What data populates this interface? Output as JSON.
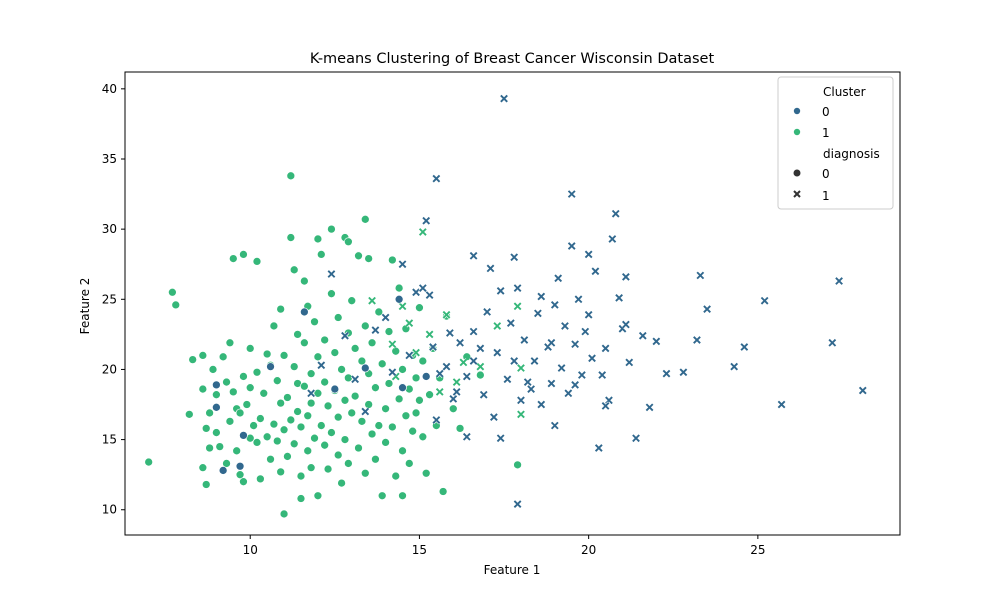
{
  "chart_data": {
    "type": "scatter",
    "title": "K-means Clustering of Breast Cancer Wisconsin Dataset",
    "xlabel": "Feature 1",
    "ylabel": "Feature 2",
    "xlim": [
      6.3,
      29.2
    ],
    "ylim": [
      8.2,
      41.2
    ],
    "xticks": [
      10,
      15,
      20,
      25
    ],
    "yticks": [
      10,
      15,
      20,
      25,
      30,
      35,
      40
    ],
    "grid": false,
    "legend": {
      "placement": "top-right",
      "cluster_title": "Cluster",
      "clusters": [
        "0",
        "1"
      ],
      "diagnosis_title": "diagnosis",
      "diagnoses": [
        "0",
        "1"
      ]
    },
    "colors": {
      "cluster_0": "#31688e",
      "cluster_1": "#35b779",
      "edge": "#ffffff"
    },
    "markers": {
      "diagnosis_0": "circle",
      "diagnosis_1": "x"
    },
    "series": [
      {
        "cluster": "1",
        "diagnosis": "0",
        "points": [
          [
            7.0,
            13.4
          ],
          [
            7.7,
            25.5
          ],
          [
            7.8,
            24.6
          ],
          [
            8.2,
            16.8
          ],
          [
            8.3,
            20.7
          ],
          [
            8.6,
            21.0
          ],
          [
            8.6,
            18.6
          ],
          [
            8.6,
            13.0
          ],
          [
            8.7,
            11.8
          ],
          [
            8.7,
            15.8
          ],
          [
            8.8,
            16.9
          ],
          [
            8.8,
            14.4
          ],
          [
            8.9,
            20.0
          ],
          [
            9.0,
            18.2
          ],
          [
            9.0,
            15.5
          ],
          [
            9.1,
            14.5
          ],
          [
            9.2,
            20.9
          ],
          [
            9.3,
            13.3
          ],
          [
            9.3,
            19.1
          ],
          [
            9.4,
            21.9
          ],
          [
            9.4,
            16.3
          ],
          [
            9.5,
            27.9
          ],
          [
            9.5,
            18.4
          ],
          [
            9.6,
            17.2
          ],
          [
            9.6,
            14.2
          ],
          [
            9.7,
            12.5
          ],
          [
            9.7,
            16.9
          ],
          [
            9.8,
            28.2
          ],
          [
            9.8,
            19.5
          ],
          [
            9.8,
            12.0
          ],
          [
            9.9,
            17.5
          ],
          [
            10.0,
            15.1
          ],
          [
            10.0,
            21.5
          ],
          [
            10.0,
            18.7
          ],
          [
            10.1,
            16.0
          ],
          [
            10.2,
            14.8
          ],
          [
            10.2,
            19.8
          ],
          [
            10.2,
            27.7
          ],
          [
            10.3,
            12.2
          ],
          [
            10.3,
            16.5
          ],
          [
            10.4,
            18.3
          ],
          [
            10.5,
            21.1
          ],
          [
            10.5,
            15.2
          ],
          [
            10.6,
            13.6
          ],
          [
            10.6,
            20.3
          ],
          [
            10.7,
            16.1
          ],
          [
            10.7,
            23.1
          ],
          [
            10.8,
            14.9
          ],
          [
            10.8,
            19.2
          ],
          [
            10.9,
            17.6
          ],
          [
            10.9,
            12.7
          ],
          [
            10.9,
            24.3
          ],
          [
            11.0,
            15.7
          ],
          [
            11.0,
            21.0
          ],
          [
            11.0,
            9.7
          ],
          [
            11.1,
            18.0
          ],
          [
            11.1,
            13.8
          ],
          [
            11.2,
            29.4
          ],
          [
            11.2,
            33.8
          ],
          [
            11.2,
            16.4
          ],
          [
            11.3,
            20.2
          ],
          [
            11.3,
            27.1
          ],
          [
            11.3,
            14.7
          ],
          [
            11.4,
            19.0
          ],
          [
            11.4,
            22.5
          ],
          [
            11.4,
            17.0
          ],
          [
            11.5,
            12.4
          ],
          [
            11.5,
            15.9
          ],
          [
            11.5,
            10.8
          ],
          [
            11.6,
            26.3
          ],
          [
            11.6,
            18.8
          ],
          [
            11.6,
            21.9
          ],
          [
            11.7,
            16.7
          ],
          [
            11.7,
            14.2
          ],
          [
            11.7,
            24.5
          ],
          [
            11.8,
            19.7
          ],
          [
            11.8,
            13.0
          ],
          [
            11.8,
            17.6
          ],
          [
            11.9,
            15.1
          ],
          [
            11.9,
            23.4
          ],
          [
            12.0,
            29.3
          ],
          [
            12.0,
            18.3
          ],
          [
            12.0,
            20.9
          ],
          [
            12.0,
            11.0
          ],
          [
            12.1,
            16.0
          ],
          [
            12.1,
            28.2
          ],
          [
            12.2,
            14.6
          ],
          [
            12.2,
            22.1
          ],
          [
            12.2,
            19.1
          ],
          [
            12.3,
            17.4
          ],
          [
            12.3,
            12.9
          ],
          [
            12.4,
            30.0
          ],
          [
            12.4,
            15.5
          ],
          [
            12.4,
            25.4
          ],
          [
            12.5,
            21.2
          ],
          [
            12.5,
            18.5
          ],
          [
            12.6,
            13.9
          ],
          [
            12.6,
            16.6
          ],
          [
            12.6,
            23.7
          ],
          [
            12.7,
            20.0
          ],
          [
            12.7,
            11.9
          ],
          [
            12.8,
            29.4
          ],
          [
            12.8,
            17.8
          ],
          [
            12.8,
            15.0
          ],
          [
            12.9,
            22.6
          ],
          [
            12.9,
            19.4
          ],
          [
            12.9,
            13.3
          ],
          [
            13.0,
            16.9
          ],
          [
            13.0,
            24.9
          ],
          [
            13.1,
            21.5
          ],
          [
            13.1,
            18.1
          ],
          [
            13.2,
            14.4
          ],
          [
            13.2,
            28.1
          ],
          [
            13.3,
            20.6
          ],
          [
            13.3,
            16.3
          ],
          [
            13.4,
            30.7
          ],
          [
            13.4,
            12.6
          ],
          [
            13.4,
            23.1
          ],
          [
            13.5,
            17.5
          ],
          [
            13.5,
            19.7
          ],
          [
            13.6,
            15.4
          ],
          [
            13.6,
            21.9
          ],
          [
            13.7,
            13.6
          ],
          [
            13.7,
            18.7
          ],
          [
            13.8,
            16.0
          ],
          [
            13.8,
            24.1
          ],
          [
            13.9,
            20.4
          ],
          [
            13.9,
            11.0
          ],
          [
            14.0,
            17.2
          ],
          [
            14.0,
            14.8
          ],
          [
            14.1,
            22.7
          ],
          [
            14.1,
            19.0
          ],
          [
            14.2,
            27.8
          ],
          [
            14.2,
            15.9
          ],
          [
            14.3,
            21.3
          ],
          [
            14.3,
            12.4
          ],
          [
            14.4,
            17.9
          ],
          [
            14.4,
            25.8
          ],
          [
            14.5,
            20.0
          ],
          [
            14.5,
            14.2
          ],
          [
            14.6,
            16.7
          ],
          [
            14.6,
            22.9
          ],
          [
            14.7,
            18.6
          ],
          [
            14.7,
            13.3
          ],
          [
            14.8,
            15.6
          ],
          [
            14.8,
            21.0
          ],
          [
            14.9,
            19.4
          ],
          [
            14.9,
            16.9
          ],
          [
            15.0,
            24.4
          ],
          [
            15.0,
            17.8
          ],
          [
            15.1,
            20.6
          ],
          [
            15.1,
            15.2
          ],
          [
            15.2,
            12.6
          ],
          [
            15.3,
            18.2
          ],
          [
            15.4,
            21.5
          ],
          [
            15.5,
            16.0
          ],
          [
            15.6,
            19.4
          ],
          [
            15.7,
            11.3
          ],
          [
            15.8,
            23.8
          ],
          [
            16.0,
            17.2
          ],
          [
            16.2,
            15.8
          ],
          [
            16.4,
            20.9
          ],
          [
            16.8,
            19.6
          ],
          [
            17.9,
            13.2
          ],
          [
            14.5,
            11.0
          ],
          [
            13.5,
            27.9
          ],
          [
            12.9,
            29.1
          ]
        ]
      },
      {
        "cluster": "1",
        "diagnosis": "1",
        "points": [
          [
            15.1,
            29.8
          ],
          [
            14.5,
            24.5
          ],
          [
            14.2,
            21.8
          ],
          [
            13.6,
            24.9
          ],
          [
            15.3,
            22.5
          ],
          [
            15.8,
            23.9
          ],
          [
            16.3,
            20.5
          ],
          [
            16.8,
            20.2
          ],
          [
            17.3,
            23.1
          ],
          [
            17.9,
            24.5
          ],
          [
            18.0,
            20.1
          ],
          [
            18.0,
            16.8
          ],
          [
            14.9,
            21.2
          ],
          [
            14.7,
            23.3
          ],
          [
            15.6,
            18.4
          ],
          [
            16.1,
            19.1
          ],
          [
            14.3,
            19.5
          ]
        ]
      },
      {
        "cluster": "0",
        "diagnosis": "0",
        "points": [
          [
            9.0,
            18.9
          ],
          [
            9.0,
            17.3
          ],
          [
            9.2,
            12.8
          ],
          [
            9.7,
            13.1
          ],
          [
            9.8,
            15.3
          ],
          [
            10.6,
            20.2
          ],
          [
            11.6,
            24.1
          ],
          [
            12.5,
            18.6
          ],
          [
            13.4,
            20.1
          ],
          [
            14.4,
            25.0
          ],
          [
            14.5,
            18.7
          ],
          [
            15.2,
            19.5
          ]
        ]
      },
      {
        "cluster": "0",
        "diagnosis": "1",
        "points": [
          [
            11.8,
            18.3
          ],
          [
            12.1,
            20.3
          ],
          [
            12.4,
            26.8
          ],
          [
            12.8,
            22.4
          ],
          [
            13.1,
            19.3
          ],
          [
            13.4,
            17.0
          ],
          [
            13.7,
            22.8
          ],
          [
            14.0,
            23.7
          ],
          [
            14.2,
            19.8
          ],
          [
            14.5,
            27.5
          ],
          [
            14.7,
            21.0
          ],
          [
            14.9,
            25.5
          ],
          [
            15.1,
            25.8
          ],
          [
            15.2,
            30.6
          ],
          [
            15.3,
            25.3
          ],
          [
            15.4,
            21.6
          ],
          [
            15.5,
            33.6
          ],
          [
            15.5,
            16.4
          ],
          [
            15.6,
            19.7
          ],
          [
            15.8,
            20.2
          ],
          [
            15.9,
            22.6
          ],
          [
            16.0,
            17.9
          ],
          [
            16.1,
            18.4
          ],
          [
            16.2,
            21.9
          ],
          [
            16.4,
            19.5
          ],
          [
            16.4,
            15.2
          ],
          [
            16.6,
            28.1
          ],
          [
            16.6,
            22.7
          ],
          [
            16.8,
            21.5
          ],
          [
            16.9,
            18.2
          ],
          [
            17.0,
            24.1
          ],
          [
            17.1,
            27.2
          ],
          [
            17.2,
            16.6
          ],
          [
            17.3,
            21.2
          ],
          [
            17.4,
            25.6
          ],
          [
            17.5,
            39.3
          ],
          [
            17.6,
            19.3
          ],
          [
            17.7,
            23.3
          ],
          [
            17.8,
            28.0
          ],
          [
            17.8,
            20.6
          ],
          [
            17.9,
            25.8
          ],
          [
            18.0,
            17.8
          ],
          [
            18.1,
            22.1
          ],
          [
            18.2,
            19.1
          ],
          [
            18.4,
            20.6
          ],
          [
            18.5,
            24.0
          ],
          [
            18.6,
            17.5
          ],
          [
            18.8,
            21.6
          ],
          [
            18.9,
            19.0
          ],
          [
            19.0,
            24.6
          ],
          [
            19.1,
            26.5
          ],
          [
            19.2,
            20.1
          ],
          [
            19.3,
            23.1
          ],
          [
            19.4,
            18.3
          ],
          [
            19.5,
            32.5
          ],
          [
            19.6,
            21.8
          ],
          [
            19.7,
            25.0
          ],
          [
            19.8,
            19.6
          ],
          [
            19.9,
            22.7
          ],
          [
            20.0,
            28.2
          ],
          [
            20.1,
            20.8
          ],
          [
            20.2,
            27.0
          ],
          [
            20.3,
            14.4
          ],
          [
            20.4,
            19.6
          ],
          [
            20.5,
            21.5
          ],
          [
            20.6,
            17.8
          ],
          [
            20.7,
            29.3
          ],
          [
            20.8,
            31.1
          ],
          [
            21.0,
            22.9
          ],
          [
            21.1,
            26.6
          ],
          [
            21.2,
            20.5
          ],
          [
            21.4,
            15.1
          ],
          [
            21.6,
            22.4
          ],
          [
            21.8,
            17.3
          ],
          [
            22.0,
            22.0
          ],
          [
            22.3,
            19.7
          ],
          [
            22.8,
            19.8
          ],
          [
            23.2,
            22.1
          ],
          [
            23.3,
            26.7
          ],
          [
            23.5,
            24.3
          ],
          [
            24.3,
            20.2
          ],
          [
            24.6,
            21.6
          ],
          [
            25.2,
            24.9
          ],
          [
            25.7,
            17.5
          ],
          [
            27.2,
            21.9
          ],
          [
            27.4,
            26.3
          ],
          [
            28.1,
            18.5
          ],
          [
            17.9,
            10.4
          ],
          [
            18.3,
            18.6
          ],
          [
            19.0,
            16.0
          ],
          [
            19.6,
            18.9
          ],
          [
            20.0,
            23.9
          ],
          [
            20.9,
            25.1
          ],
          [
            21.1,
            23.2
          ],
          [
            19.5,
            28.8
          ],
          [
            18.6,
            25.2
          ],
          [
            17.4,
            15.1
          ],
          [
            16.6,
            20.6
          ],
          [
            18.9,
            21.9
          ],
          [
            20.5,
            17.4
          ]
        ]
      }
    ]
  }
}
